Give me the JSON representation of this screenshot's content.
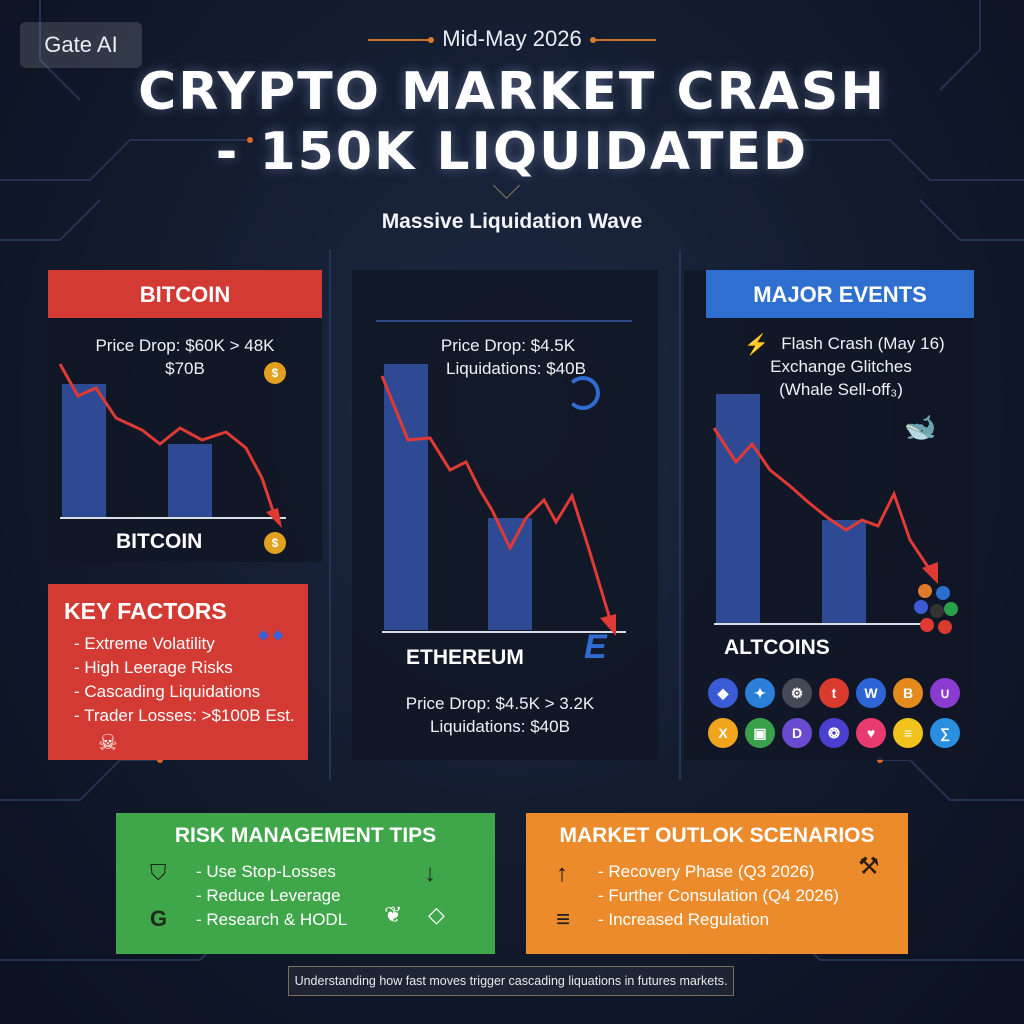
{
  "badge": "Gate AI",
  "date": "Mid-May 2026",
  "title_line1": "CRYPTO MARKET CRASH",
  "title_line2": "- 150K LIQUIDATED",
  "subtitle": "Massive Liquidation Wave",
  "bitcoin": {
    "header": "BITCOIN",
    "line1": "Price Drop: $60K > 48K",
    "line2": "$70B",
    "label": "BITCOIN"
  },
  "ethereum": {
    "line1": "Price Drop: $4.5K",
    "line2": "Liquidations: $40B",
    "label": "ETHEREUM",
    "bottom1": "Price Drop: $4.5K > 3.2K",
    "bottom2": "Liquidations: $40B"
  },
  "events": {
    "header": "MAJOR EVENTS",
    "line1": "Flash Crash (May 16)",
    "line2": "Exchange Glitches",
    "line3": "(Whale Sell-off₃)",
    "label": "ALTCOINS"
  },
  "key_factors": {
    "header": "KEY FACTORS",
    "items": [
      "- Extreme Volatility",
      "- High Leerage Risks",
      "- Cascading Liquidations",
      "- Trader Losses: >$100B Est."
    ]
  },
  "risk": {
    "header": "RISK MANAGEMENT TIPS",
    "items": [
      "- Use Stop-Losses",
      "- Reduce Leverage",
      "- Research & HODL"
    ]
  },
  "outlook": {
    "header": "MARKET OUTLOK SCENARIOS",
    "items": [
      "- Recovery Phase (Q3 2026)",
      "- Further Consulation (Q4 2026)",
      "- Increased Regulation"
    ]
  },
  "footer": "Understanding how fast moves trigger cascading liquations in futures markets.",
  "altcoin_icons": [
    {
      "glyph": "◆",
      "color": "#3b5bd6"
    },
    {
      "glyph": "✦",
      "color": "#2a7fd8"
    },
    {
      "glyph": "⚙",
      "color": "#444a55"
    },
    {
      "glyph": "t",
      "color": "#d83a2e"
    },
    {
      "glyph": "W",
      "color": "#2f64d6"
    },
    {
      "glyph": "B",
      "color": "#e58a1f"
    },
    {
      "glyph": "∪",
      "color": "#8a3bd0"
    },
    {
      "glyph": "X",
      "color": "#f0a51c"
    },
    {
      "glyph": "▣",
      "color": "#3aa14a"
    },
    {
      "glyph": "D",
      "color": "#6a4bd0"
    },
    {
      "glyph": "❂",
      "color": "#4b3fd0"
    },
    {
      "glyph": "♥",
      "color": "#e83a6e"
    },
    {
      "glyph": "≡",
      "color": "#f2c21c"
    },
    {
      "glyph": "∑",
      "color": "#2a8fe0"
    }
  ]
}
